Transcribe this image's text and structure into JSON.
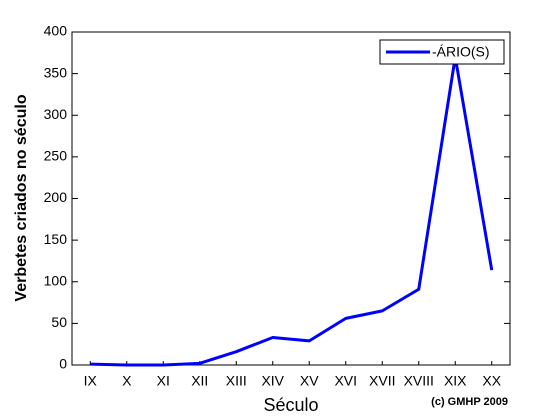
{
  "chart_data": {
    "type": "line",
    "categories": [
      "IX",
      "X",
      "XI",
      "XII",
      "XIII",
      "XIV",
      "XV",
      "XVI",
      "XVII",
      "XVIII",
      "XIX",
      "XX"
    ],
    "series": [
      {
        "name": "-ÁRIO(S)",
        "color": "#0000ff",
        "values": [
          1,
          0,
          0,
          2,
          16,
          33,
          29,
          56,
          65,
          91,
          370,
          114
        ]
      }
    ],
    "ylim": [
      0,
      400
    ],
    "yticks": [
      0,
      50,
      100,
      150,
      200,
      250,
      300,
      350,
      400
    ],
    "xlabel": "Século",
    "ylabel": "Verbetes criados no século",
    "annotation": "(c) GMHP 2009",
    "legend": "upper right"
  }
}
